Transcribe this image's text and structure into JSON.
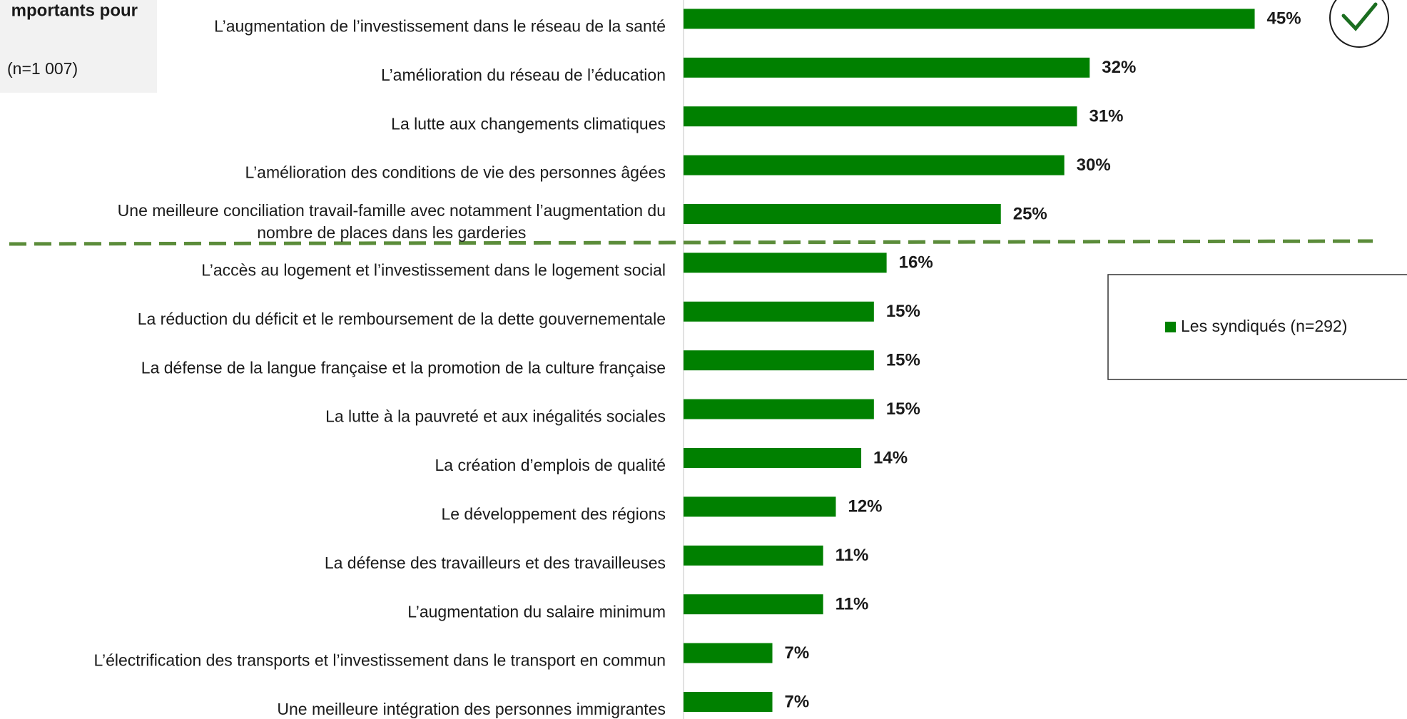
{
  "header": {
    "title": "mportants pour",
    "sample": "(n=1 007)"
  },
  "chart_data": {
    "type": "bar",
    "orientation": "horizontal",
    "categories": [
      "L’augmentation de l’investissement dans le réseau de la santé",
      "L’amélioration du réseau de l’éducation",
      "La lutte aux changements climatiques",
      "L’amélioration des conditions de vie des personnes âgées",
      "Une meilleure conciliation travail-famille avec notamment l’augmentation du\nnombre de places dans les garderies",
      "L’accès au logement et l’investissement dans le logement social",
      "La réduction du déficit et le remboursement de la dette gouvernementale",
      "La défense de la langue française et la promotion de la culture française",
      "La lutte à la pauvreté et aux inégalités sociales",
      "La création d’emplois de qualité",
      "Le développement des régions",
      "La défense des travailleurs et des travailleuses",
      "L’augmentation du salaire minimum",
      "L’électrification des transports et l’investissement dans le transport en commun",
      "Une meilleure intégration des personnes immigrantes"
    ],
    "series": [
      {
        "name": "Les syndiqués (n=292)",
        "color": "#008000",
        "values": [
          45,
          32,
          31,
          30,
          25,
          16,
          15,
          15,
          15,
          14,
          12,
          11,
          11,
          7,
          7
        ],
        "value_labels": [
          "45%",
          "32%",
          "31%",
          "30%",
          "25%",
          "16%",
          "15%",
          "15%",
          "15%",
          "14%",
          "12%",
          "11%",
          "11%",
          "7%",
          "7%"
        ]
      }
    ],
    "xlim": [
      0,
      57
    ]
  }
}
